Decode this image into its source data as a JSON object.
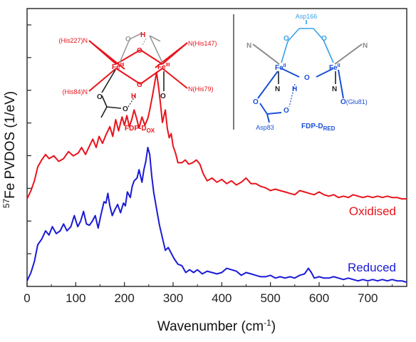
{
  "chart_data": {
    "type": "line",
    "xlabel": "Wavenumber (cm",
    "xlabel_sup": "-1",
    "xlabel_close": ")",
    "ylabel_sup": "57",
    "ylabel": "Fe PVDOS (1/eV)",
    "xlim": [
      0,
      780
    ],
    "x_ticks": [
      0,
      100,
      200,
      300,
      400,
      500,
      600,
      700
    ],
    "ylim": [
      0,
      1
    ],
    "grid": false,
    "series": [
      {
        "name": "Oxidised",
        "color": "#e8141c",
        "points": [
          [
            0,
            0.315
          ],
          [
            8,
            0.345
          ],
          [
            15,
            0.38
          ],
          [
            22,
            0.43
          ],
          [
            30,
            0.455
          ],
          [
            38,
            0.475
          ],
          [
            45,
            0.46
          ],
          [
            55,
            0.47
          ],
          [
            65,
            0.45
          ],
          [
            75,
            0.46
          ],
          [
            85,
            0.485
          ],
          [
            95,
            0.47
          ],
          [
            105,
            0.48
          ],
          [
            112,
            0.5
          ],
          [
            120,
            0.475
          ],
          [
            128,
            0.505
          ],
          [
            135,
            0.53
          ],
          [
            142,
            0.5
          ],
          [
            148,
            0.54
          ],
          [
            155,
            0.515
          ],
          [
            162,
            0.545
          ],
          [
            170,
            0.575
          ],
          [
            176,
            0.54
          ],
          [
            182,
            0.6
          ],
          [
            188,
            0.56
          ],
          [
            195,
            0.61
          ],
          [
            200,
            0.58
          ],
          [
            205,
            0.615
          ],
          [
            210,
            0.575
          ],
          [
            215,
            0.6
          ],
          [
            220,
            0.635
          ],
          [
            225,
            0.605
          ],
          [
            230,
            0.57
          ],
          [
            236,
            0.61
          ],
          [
            242,
            0.58
          ],
          [
            248,
            0.605
          ],
          [
            252,
            0.635
          ],
          [
            258,
            0.69
          ],
          [
            262,
            0.73
          ],
          [
            266,
            0.77
          ],
          [
            270,
            0.72
          ],
          [
            274,
            0.66
          ],
          [
            278,
            0.59
          ],
          [
            284,
            0.635
          ],
          [
            288,
            0.57
          ],
          [
            292,
            0.535
          ],
          [
            296,
            0.55
          ],
          [
            300,
            0.505
          ],
          [
            305,
            0.48
          ],
          [
            310,
            0.445
          ],
          [
            318,
            0.445
          ],
          [
            325,
            0.455
          ],
          [
            332,
            0.44
          ],
          [
            340,
            0.445
          ],
          [
            348,
            0.455
          ],
          [
            355,
            0.44
          ],
          [
            362,
            0.405
          ],
          [
            370,
            0.38
          ],
          [
            380,
            0.39
          ],
          [
            390,
            0.375
          ],
          [
            400,
            0.385
          ],
          [
            410,
            0.37
          ],
          [
            420,
            0.38
          ],
          [
            430,
            0.365
          ],
          [
            440,
            0.375
          ],
          [
            450,
            0.39
          ],
          [
            460,
            0.37
          ],
          [
            470,
            0.37
          ],
          [
            480,
            0.36
          ],
          [
            490,
            0.355
          ],
          [
            500,
            0.345
          ],
          [
            510,
            0.35
          ],
          [
            520,
            0.345
          ],
          [
            530,
            0.34
          ],
          [
            540,
            0.335
          ],
          [
            550,
            0.33
          ],
          [
            560,
            0.345
          ],
          [
            570,
            0.34
          ],
          [
            580,
            0.335
          ],
          [
            590,
            0.33
          ],
          [
            600,
            0.34
          ],
          [
            610,
            0.33
          ],
          [
            620,
            0.325
          ],
          [
            630,
            0.33
          ],
          [
            640,
            0.32
          ],
          [
            650,
            0.325
          ],
          [
            660,
            0.32
          ],
          [
            670,
            0.33
          ],
          [
            680,
            0.325
          ],
          [
            690,
            0.32
          ],
          [
            700,
            0.325
          ],
          [
            710,
            0.32
          ],
          [
            720,
            0.325
          ],
          [
            730,
            0.32
          ],
          [
            740,
            0.325
          ],
          [
            750,
            0.32
          ],
          [
            760,
            0.32
          ],
          [
            770,
            0.315
          ],
          [
            780,
            0.315
          ]
        ]
      },
      {
        "name": "Reduced",
        "color": "#1a1ad6",
        "points": [
          [
            0,
            0.02
          ],
          [
            8,
            0.05
          ],
          [
            15,
            0.09
          ],
          [
            22,
            0.15
          ],
          [
            30,
            0.17
          ],
          [
            38,
            0.2
          ],
          [
            45,
            0.185
          ],
          [
            52,
            0.215
          ],
          [
            60,
            0.19
          ],
          [
            68,
            0.2
          ],
          [
            75,
            0.225
          ],
          [
            82,
            0.2
          ],
          [
            90,
            0.215
          ],
          [
            97,
            0.255
          ],
          [
            104,
            0.215
          ],
          [
            110,
            0.235
          ],
          [
            116,
            0.27
          ],
          [
            122,
            0.225
          ],
          [
            128,
            0.22
          ],
          [
            134,
            0.235
          ],
          [
            140,
            0.255
          ],
          [
            146,
            0.21
          ],
          [
            152,
            0.26
          ],
          [
            158,
            0.305
          ],
          [
            162,
            0.3
          ],
          [
            166,
            0.335
          ],
          [
            170,
            0.29
          ],
          [
            175,
            0.255
          ],
          [
            180,
            0.275
          ],
          [
            186,
            0.295
          ],
          [
            192,
            0.265
          ],
          [
            198,
            0.3
          ],
          [
            202,
            0.29
          ],
          [
            206,
            0.34
          ],
          [
            212,
            0.32
          ],
          [
            216,
            0.36
          ],
          [
            220,
            0.38
          ],
          [
            226,
            0.39
          ],
          [
            230,
            0.42
          ],
          [
            236,
            0.375
          ],
          [
            240,
            0.42
          ],
          [
            244,
            0.45
          ],
          [
            248,
            0.5
          ],
          [
            252,
            0.475
          ],
          [
            256,
            0.4
          ],
          [
            260,
            0.34
          ],
          [
            264,
            0.3
          ],
          [
            268,
            0.26
          ],
          [
            272,
            0.22
          ],
          [
            278,
            0.175
          ],
          [
            284,
            0.13
          ],
          [
            290,
            0.14
          ],
          [
            296,
            0.12
          ],
          [
            302,
            0.1
          ],
          [
            310,
            0.08
          ],
          [
            318,
            0.075
          ],
          [
            326,
            0.05
          ],
          [
            334,
            0.06
          ],
          [
            342,
            0.05
          ],
          [
            350,
            0.06
          ],
          [
            360,
            0.045
          ],
          [
            370,
            0.055
          ],
          [
            380,
            0.05
          ],
          [
            390,
            0.045
          ],
          [
            400,
            0.05
          ],
          [
            410,
            0.065
          ],
          [
            420,
            0.06
          ],
          [
            430,
            0.055
          ],
          [
            440,
            0.04
          ],
          [
            450,
            0.05
          ],
          [
            460,
            0.045
          ],
          [
            470,
            0.04
          ],
          [
            480,
            0.035
          ],
          [
            490,
            0.035
          ],
          [
            500,
            0.04
          ],
          [
            510,
            0.03
          ],
          [
            520,
            0.035
          ],
          [
            530,
            0.03
          ],
          [
            540,
            0.035
          ],
          [
            550,
            0.03
          ],
          [
            560,
            0.04
          ],
          [
            570,
            0.045
          ],
          [
            578,
            0.065
          ],
          [
            584,
            0.05
          ],
          [
            590,
            0.03
          ],
          [
            600,
            0.035
          ],
          [
            610,
            0.03
          ],
          [
            620,
            0.03
          ],
          [
            630,
            0.035
          ],
          [
            640,
            0.03
          ],
          [
            650,
            0.025
          ],
          [
            660,
            0.03
          ],
          [
            670,
            0.025
          ],
          [
            680,
            0.02
          ],
          [
            690,
            0.025
          ],
          [
            700,
            0.02
          ],
          [
            710,
            0.025
          ],
          [
            720,
            0.02
          ],
          [
            730,
            0.025
          ],
          [
            740,
            0.02
          ],
          [
            750,
            0.025
          ],
          [
            760,
            0.02
          ],
          [
            770,
            0.02
          ],
          [
            780,
            0.015
          ]
        ]
      }
    ]
  },
  "inset": {
    "ox": {
      "labels": {
        "his227": "(His227)N",
        "his84": "(His84)N",
        "his147": "N(His147)",
        "his79": "N(His79)",
        "fe_left": "Fe",
        "fe_right": "Fe",
        "fe_sup": "III",
        "o_top": "O",
        "o_bottom": "O",
        "h_top": "H",
        "h_bottom": "H",
        "o_carb_top": "O",
        "o_carb_left": "O",
        "o_carb_right": "O",
        "o_water": "O"
      },
      "caption": "FDP-D",
      "caption_sub": "OX",
      "color": "#e8141c"
    },
    "red": {
      "labels": {
        "asp166": "Asp166",
        "asp83": "Asp83",
        "glu81": "(Glu81)",
        "fe_left": "Fe",
        "fe_right": "Fe",
        "fe_sup": "II",
        "n_left": "N",
        "n_right": "N",
        "o_bridge": "O",
        "h_bridge": "H",
        "o_166_left": "O",
        "o_166_right": "O",
        "o_83_left": "O",
        "o_83_right": "O",
        "o_glu": "O"
      },
      "caption": "FDP-D",
      "caption_sub": "RED",
      "color": "#1a50d6",
      "light_color": "#3aa0e8"
    }
  }
}
